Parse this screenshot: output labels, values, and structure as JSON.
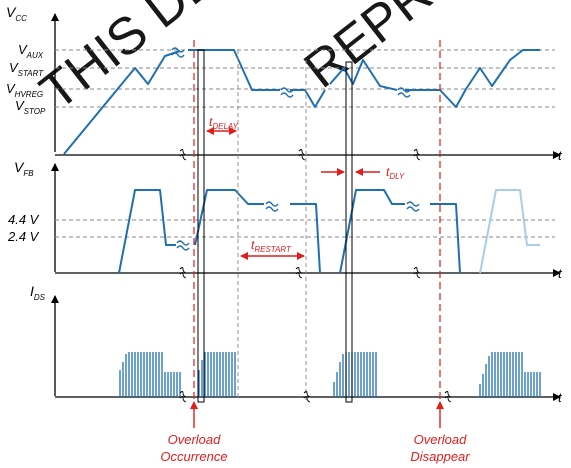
{
  "watermark": {
    "text_1": "THIS DE",
    "text_2": "REPRE"
  },
  "panels": {
    "vcc": {
      "axis_main": "V",
      "axis_sub": "CC",
      "time": "t",
      "levels": [
        {
          "main": "V",
          "sub": "AUX"
        },
        {
          "main": "V",
          "sub": "START"
        },
        {
          "main": "V",
          "sub": "HVREG"
        },
        {
          "main": "V",
          "sub": "STOP"
        }
      ]
    },
    "vfb": {
      "axis_main": "V",
      "axis_sub": "FB",
      "time": "t",
      "levels": [
        "4.4 V",
        "2.4 V"
      ]
    },
    "ids": {
      "axis_main": "I",
      "axis_sub": "DS",
      "time": "t"
    }
  },
  "timings": {
    "delay": {
      "main": "t",
      "sub": "DELAY"
    },
    "dly": {
      "main": "t",
      "sub": "DLY"
    },
    "restart": {
      "main": "t",
      "sub": "RESTART"
    }
  },
  "events": {
    "overload_occurrence": {
      "line1": "Overload",
      "line2": "Occurrence"
    },
    "overload_disappear": {
      "line1": "Overload",
      "line2": "Disappear"
    }
  },
  "colors": {
    "trace": "#1f6fb3",
    "marker": "#e31c1c",
    "axis": "#000000",
    "faded_trace": "#a9cde8"
  }
}
